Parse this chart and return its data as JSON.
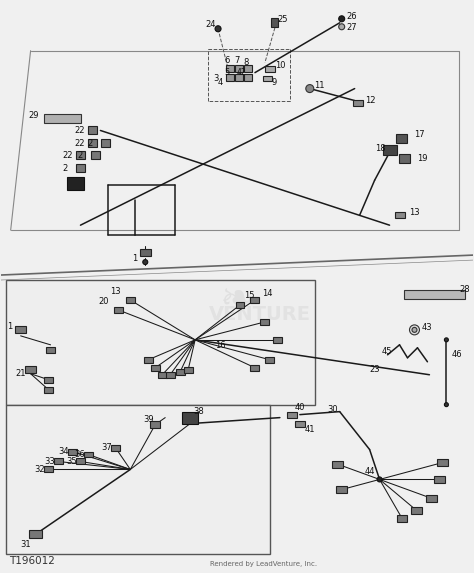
{
  "bg_color": "#f0f0f0",
  "line_color": "#1a1a1a",
  "label_color": "#111111",
  "title": "T196012",
  "watermark": "Rendered by LeadVenture, Inc.",
  "figsize": [
    4.74,
    5.73
  ],
  "dpi": 100
}
